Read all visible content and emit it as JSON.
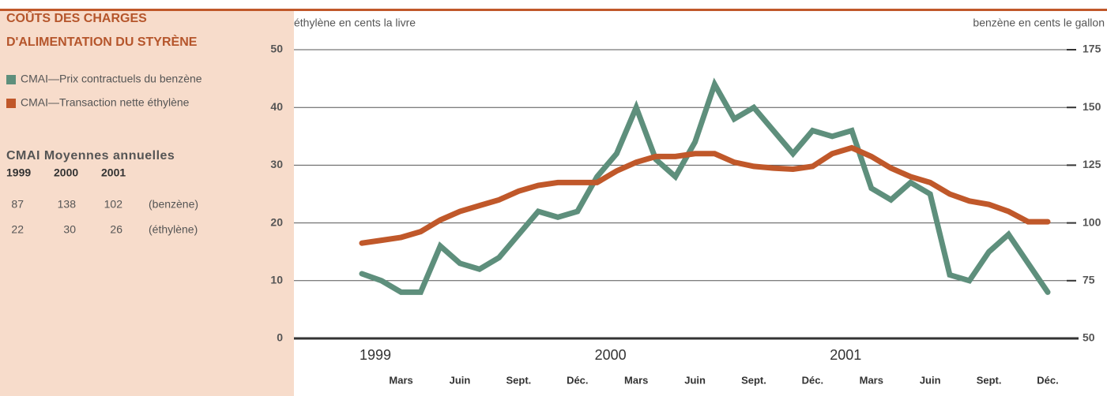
{
  "chart_data": {
    "type": "line",
    "title": [
      "COÛTS DES CHARGES",
      "D'ALIMENTATION DU STYRÈNE"
    ],
    "y_label": "éthylène en cents la livre",
    "y2_label": "benzène en cents le gallon",
    "categories": [
      null,
      null,
      "Mars",
      null,
      null,
      "Juin",
      null,
      null,
      "Sept.",
      null,
      null,
      "Déc.",
      null,
      null,
      "Mars",
      null,
      null,
      "Juin",
      null,
      null,
      "Sept.",
      null,
      null,
      "Déc.",
      null,
      null,
      "Mars",
      null,
      null,
      "Juin",
      null,
      null,
      "Sept.",
      null,
      null,
      "Déc."
    ],
    "years": [
      "1999",
      "2000",
      "2001"
    ],
    "ylim": [
      0,
      50
    ],
    "yticks": [
      0,
      10,
      20,
      30,
      40,
      50
    ],
    "y2lim": [
      50,
      175
    ],
    "y2ticks": [
      50,
      75,
      100,
      125,
      150,
      175
    ],
    "grid": true,
    "series": [
      {
        "name": "CMAI—Prix contractuels du benzène",
        "color": "#5e8f7c",
        "axis": "y2",
        "values": [
          78,
          75,
          70,
          70,
          90,
          82.5,
          80,
          85,
          95,
          105,
          102.5,
          105,
          120,
          130,
          150,
          127.5,
          120,
          135,
          160,
          145,
          150,
          140,
          130,
          140,
          137.5,
          140,
          115,
          110,
          117.5,
          112.5,
          77.5,
          75,
          87.5,
          95,
          82.5,
          70
        ]
      },
      {
        "name": "CMAI—Transaction nette éthylène",
        "color": "#c0582a",
        "values": [
          16.5,
          17,
          17.5,
          18.5,
          20.5,
          22,
          23,
          24,
          25.5,
          26.5,
          27,
          27,
          27,
          29,
          30.5,
          31.5,
          31.5,
          32,
          32,
          30.5,
          29.8,
          29.5,
          29.3,
          29.8,
          32,
          33,
          31.5,
          29.5,
          28,
          27,
          25,
          23.8,
          23.2,
          22,
          20.2,
          20.2
        ]
      }
    ]
  },
  "annual_table": {
    "title": "CMAI Moyennes annuelles",
    "columns": [
      "1999",
      "2000",
      "2001"
    ],
    "rows": [
      {
        "values": [
          87,
          138,
          102
        ],
        "label": "(benzène)"
      },
      {
        "values": [
          22,
          30,
          26
        ],
        "label": "(éthylène)"
      }
    ]
  }
}
